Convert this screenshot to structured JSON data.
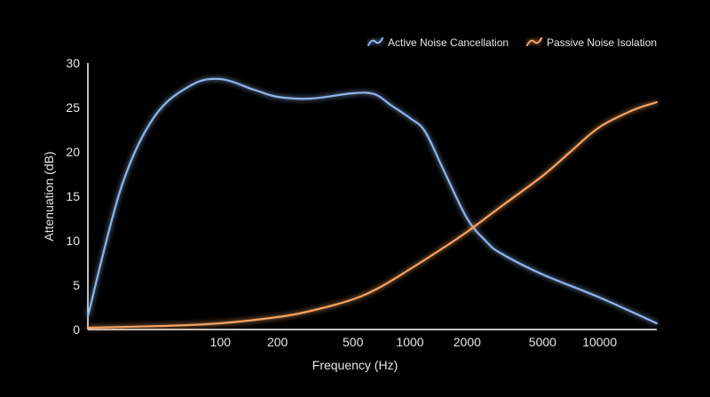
{
  "chart_data": {
    "type": "line",
    "xlabel": "Frequency (Hz)",
    "ylabel": "Attenuation (dB)",
    "x_scale": "log",
    "xlim": [
      20,
      20000
    ],
    "ylim": [
      0,
      30
    ],
    "x_ticks": [
      100,
      200,
      500,
      1000,
      2000,
      5000,
      10000
    ],
    "y_ticks": [
      0,
      5,
      10,
      15,
      20,
      25,
      30
    ],
    "grid": false,
    "legend_position": "top-right",
    "series": [
      {
        "name": "Active Noise Cancellation",
        "color": "#8fb3ea",
        "points": [
          [
            20,
            1.5
          ],
          [
            30,
            16
          ],
          [
            45,
            24
          ],
          [
            70,
            27.5
          ],
          [
            100,
            28.2
          ],
          [
            150,
            27
          ],
          [
            200,
            26.2
          ],
          [
            300,
            26
          ],
          [
            500,
            26.6
          ],
          [
            650,
            26.5
          ],
          [
            800,
            25.2
          ],
          [
            1000,
            23.8
          ],
          [
            1200,
            22.3
          ],
          [
            1500,
            18
          ],
          [
            2000,
            12.5
          ],
          [
            2500,
            10
          ],
          [
            3000,
            8.6
          ],
          [
            5000,
            6.2
          ],
          [
            10000,
            3.6
          ],
          [
            20000,
            0.7
          ]
        ]
      },
      {
        "name": "Passive Noise Isolation",
        "color": "#f5a262",
        "points": [
          [
            20,
            0.2
          ],
          [
            50,
            0.4
          ],
          [
            100,
            0.7
          ],
          [
            200,
            1.4
          ],
          [
            300,
            2.1
          ],
          [
            500,
            3.4
          ],
          [
            700,
            4.8
          ],
          [
            1000,
            6.8
          ],
          [
            1500,
            9.2
          ],
          [
            2000,
            11
          ],
          [
            3000,
            13.8
          ],
          [
            5000,
            17.3
          ],
          [
            7000,
            20
          ],
          [
            10000,
            22.8
          ],
          [
            15000,
            24.7
          ],
          [
            20000,
            25.6
          ]
        ]
      }
    ]
  }
}
